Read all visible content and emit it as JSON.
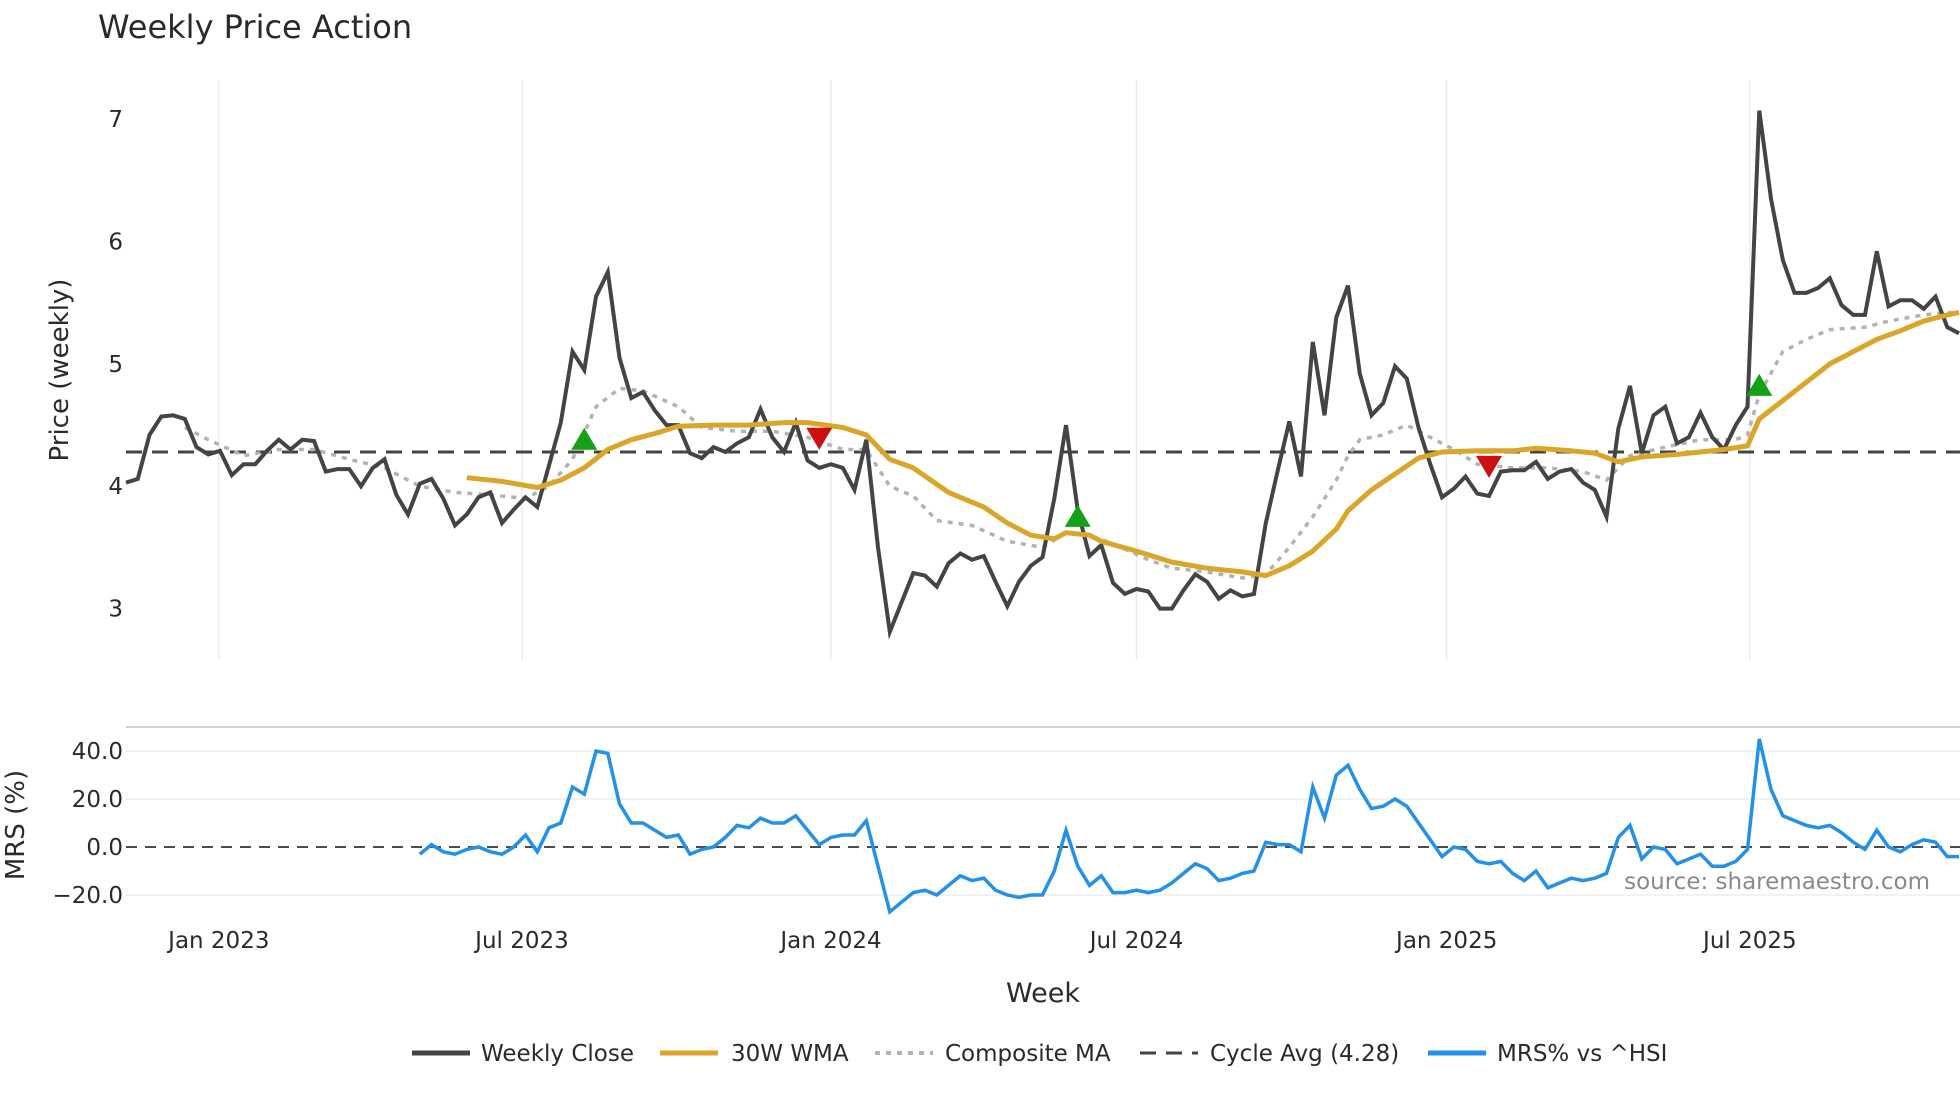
{
  "chart_data": {
    "type": "line",
    "title": "Weekly Price Action",
    "xlabel": "Week",
    "x_unit": "week index (0 = first plotted week, ~early Nov 2022)",
    "x_range": [
      0,
      156
    ],
    "x_ticks": [
      {
        "label": "Jan 2023",
        "week": 7.9
      },
      {
        "label": "Jul 2023",
        "week": 33.7
      },
      {
        "label": "Jan 2024",
        "week": 60.0
      },
      {
        "label": "Jul 2024",
        "week": 86.0
      },
      {
        "label": "Jan 2025",
        "week": 112.4
      },
      {
        "label": "Jul 2025",
        "week": 138.2
      }
    ],
    "price_panel": {
      "ylabel": "Price (weekly)",
      "ylim": [
        2.58,
        7.32
      ],
      "y_ticks": [
        {
          "label": "7",
          "value": 7
        },
        {
          "label": "6",
          "value": 6
        },
        {
          "label": "5",
          "value": 5
        },
        {
          "label": "4",
          "value": 4
        },
        {
          "label": "3",
          "value": 3
        }
      ],
      "weekly_close": [
        4.03,
        4.06,
        4.42,
        4.57,
        4.58,
        4.55,
        4.32,
        4.26,
        4.29,
        4.09,
        4.18,
        4.18,
        4.29,
        4.38,
        4.3,
        4.38,
        4.37,
        4.12,
        4.14,
        4.14,
        4.0,
        4.15,
        4.22,
        3.93,
        3.77,
        4.02,
        4.06,
        3.9,
        3.68,
        3.77,
        3.91,
        3.95,
        3.7,
        3.81,
        3.91,
        3.83,
        4.17,
        4.52,
        5.1,
        4.95,
        5.55,
        5.75,
        5.05,
        4.72,
        4.77,
        4.62,
        4.5,
        4.5,
        4.27,
        4.23,
        4.32,
        4.28,
        4.35,
        4.4,
        4.63,
        4.4,
        4.28,
        4.52,
        4.21,
        4.15,
        4.18,
        4.15,
        3.97,
        4.38,
        3.5,
        2.81,
        3.05,
        3.29,
        3.27,
        3.18,
        3.37,
        3.45,
        3.4,
        3.43,
        3.22,
        3.02,
        3.22,
        3.35,
        3.42,
        3.9,
        4.5,
        3.8,
        3.43,
        3.52,
        3.21,
        3.12,
        3.16,
        3.14,
        3.0,
        3.0,
        3.15,
        3.28,
        3.22,
        3.08,
        3.15,
        3.1,
        3.12,
        3.7,
        4.12,
        4.53,
        4.08,
        5.18,
        4.58,
        5.38,
        5.64,
        4.92,
        4.58,
        4.68,
        4.98,
        4.88,
        4.48,
        4.18,
        3.91,
        3.98,
        4.08,
        3.94,
        3.92,
        4.12,
        4.13,
        4.13,
        4.2,
        4.06,
        4.12,
        4.14,
        4.03,
        3.97,
        3.75,
        4.47,
        4.82,
        4.27,
        4.58,
        4.65,
        4.35,
        4.4,
        4.6,
        4.4,
        4.3,
        4.5,
        4.65,
        7.07,
        6.35,
        5.85,
        5.58,
        5.58,
        5.62,
        5.7,
        5.48,
        5.4,
        5.4,
        5.92,
        5.47,
        5.52,
        5.52,
        5.45,
        5.55,
        5.3,
        5.25
      ],
      "wma_30w": [
        [
          29,
          4.07
        ],
        [
          32,
          4.04
        ],
        [
          35,
          3.99
        ],
        [
          37,
          4.05
        ],
        [
          39,
          4.15
        ],
        [
          41,
          4.3
        ],
        [
          43,
          4.38
        ],
        [
          45,
          4.43
        ],
        [
          47,
          4.49
        ],
        [
          50,
          4.5
        ],
        [
          53,
          4.5
        ],
        [
          56,
          4.52
        ],
        [
          58,
          4.52
        ],
        [
          61,
          4.48
        ],
        [
          63,
          4.42
        ],
        [
          65,
          4.22
        ],
        [
          67,
          4.15
        ],
        [
          70,
          3.95
        ],
        [
          73,
          3.83
        ],
        [
          75,
          3.7
        ],
        [
          77,
          3.6
        ],
        [
          79,
          3.57
        ],
        [
          80,
          3.62
        ],
        [
          82,
          3.6
        ],
        [
          83,
          3.55
        ],
        [
          86,
          3.47
        ],
        [
          89,
          3.38
        ],
        [
          92,
          3.33
        ],
        [
          95,
          3.3
        ],
        [
          97,
          3.27
        ],
        [
          99,
          3.35
        ],
        [
          101,
          3.47
        ],
        [
          103,
          3.65
        ],
        [
          104,
          3.8
        ],
        [
          106,
          3.97
        ],
        [
          108,
          4.1
        ],
        [
          110,
          4.23
        ],
        [
          112,
          4.28
        ],
        [
          115,
          4.29
        ],
        [
          118,
          4.29
        ],
        [
          120,
          4.31
        ],
        [
          123,
          4.29
        ],
        [
          125,
          4.27
        ],
        [
          127,
          4.2
        ],
        [
          129,
          4.24
        ],
        [
          132,
          4.26
        ],
        [
          134,
          4.28
        ],
        [
          136,
          4.3
        ],
        [
          138,
          4.33
        ],
        [
          139,
          4.55
        ],
        [
          141,
          4.7
        ],
        [
          143,
          4.85
        ],
        [
          145,
          5.0
        ],
        [
          147,
          5.1
        ],
        [
          149,
          5.2
        ],
        [
          151,
          5.27
        ],
        [
          153,
          5.35
        ],
        [
          155,
          5.4
        ],
        [
          156,
          5.42
        ]
      ],
      "composite_ma": [
        [
          5,
          4.48
        ],
        [
          7,
          4.38
        ],
        [
          10,
          4.25
        ],
        [
          13,
          4.3
        ],
        [
          16,
          4.3
        ],
        [
          19,
          4.22
        ],
        [
          22,
          4.15
        ],
        [
          25,
          4.0
        ],
        [
          28,
          3.95
        ],
        [
          31,
          3.93
        ],
        [
          34,
          3.9
        ],
        [
          36,
          4.0
        ],
        [
          38,
          4.22
        ],
        [
          40,
          4.65
        ],
        [
          42,
          4.8
        ],
        [
          44,
          4.78
        ],
        [
          47,
          4.65
        ],
        [
          49,
          4.48
        ],
        [
          52,
          4.45
        ],
        [
          55,
          4.45
        ],
        [
          58,
          4.4
        ],
        [
          61,
          4.3
        ],
        [
          63,
          4.3
        ],
        [
          65,
          4.0
        ],
        [
          67,
          3.92
        ],
        [
          69,
          3.72
        ],
        [
          72,
          3.68
        ],
        [
          75,
          3.55
        ],
        [
          78,
          3.5
        ],
        [
          80,
          3.62
        ],
        [
          82,
          3.6
        ],
        [
          84,
          3.53
        ],
        [
          87,
          3.4
        ],
        [
          89,
          3.33
        ],
        [
          92,
          3.3
        ],
        [
          95,
          3.25
        ],
        [
          97,
          3.28
        ],
        [
          99,
          3.5
        ],
        [
          101,
          3.75
        ],
        [
          103,
          4.05
        ],
        [
          104,
          4.25
        ],
        [
          105,
          4.38
        ],
        [
          107,
          4.42
        ],
        [
          109,
          4.5
        ],
        [
          111,
          4.4
        ],
        [
          113,
          4.3
        ],
        [
          115,
          4.18
        ],
        [
          118,
          4.15
        ],
        [
          121,
          4.15
        ],
        [
          124,
          4.12
        ],
        [
          126,
          4.05
        ],
        [
          128,
          4.25
        ],
        [
          131,
          4.32
        ],
        [
          134,
          4.38
        ],
        [
          137,
          4.38
        ],
        [
          138,
          4.42
        ],
        [
          139,
          4.75
        ],
        [
          141,
          5.1
        ],
        [
          143,
          5.2
        ],
        [
          145,
          5.28
        ],
        [
          148,
          5.3
        ],
        [
          150,
          5.35
        ],
        [
          153,
          5.4
        ],
        [
          155,
          5.42
        ],
        [
          156,
          5.42
        ]
      ],
      "cycle_avg": 4.28,
      "buy_signals": [
        [
          39,
          4.38
        ],
        [
          81,
          3.75
        ],
        [
          139,
          4.82
        ]
      ],
      "sell_signals": [
        [
          59,
          4.38
        ],
        [
          116,
          4.15
        ]
      ]
    },
    "mrs_panel": {
      "ylabel": "MRS (%)",
      "ylim": [
        -30,
        50
      ],
      "y_ticks": [
        {
          "label": "40.0",
          "value": 40
        },
        {
          "label": "20.0",
          "value": 20
        },
        {
          "label": "0.0",
          "value": 0
        },
        {
          "label": "−20.0",
          "value": -20
        }
      ],
      "start_week": 25,
      "values": [
        -3,
        1,
        -2,
        -3,
        -1,
        0,
        -2,
        -3,
        0,
        5,
        -2,
        8,
        10,
        25,
        22,
        40,
        39,
        18,
        10,
        10,
        7,
        4,
        5,
        -3,
        -1,
        0,
        4,
        9,
        8,
        12,
        10,
        10,
        13,
        7,
        1,
        4,
        5,
        5,
        11,
        -8,
        -27,
        -23,
        -19,
        -18,
        -20,
        -16,
        -12,
        -14,
        -13,
        -18,
        -20,
        -21,
        -20,
        -20,
        -10,
        7,
        -8,
        -16,
        -12,
        -19,
        -19,
        -18,
        -19,
        -18,
        -15,
        -11,
        -7,
        -9,
        -14,
        -13,
        -11,
        -10,
        2,
        1,
        1,
        -2,
        25,
        12,
        30,
        34,
        24,
        16,
        17,
        20,
        17,
        10,
        3,
        -4,
        0,
        -1,
        -6,
        -7,
        -6,
        -11,
        -14,
        -10,
        -17,
        -15,
        -13,
        -14,
        -13,
        -11,
        4,
        9,
        -5,
        0,
        -1,
        -7,
        -5,
        -3,
        -8,
        -8,
        -6,
        -1,
        45,
        24,
        13,
        11,
        9,
        8,
        9,
        6,
        2,
        -1,
        7,
        0,
        -2,
        1,
        3,
        2,
        -4,
        -4
      ]
    },
    "legend": {
      "placement": "bottom-center",
      "items": [
        "Weekly Close",
        "30W WMA",
        "Composite MA",
        "Cycle Avg (4.28)",
        "MRS% vs ^HSI"
      ]
    },
    "annotation": "source: sharemaestro.com",
    "colors": {
      "close": "#444444",
      "wma": "#d9a62a",
      "composite": "#b3b3b3",
      "cycle": "#444444",
      "mrs": "#2390ea",
      "buy": "#16a016",
      "sell": "#cc1010"
    }
  }
}
